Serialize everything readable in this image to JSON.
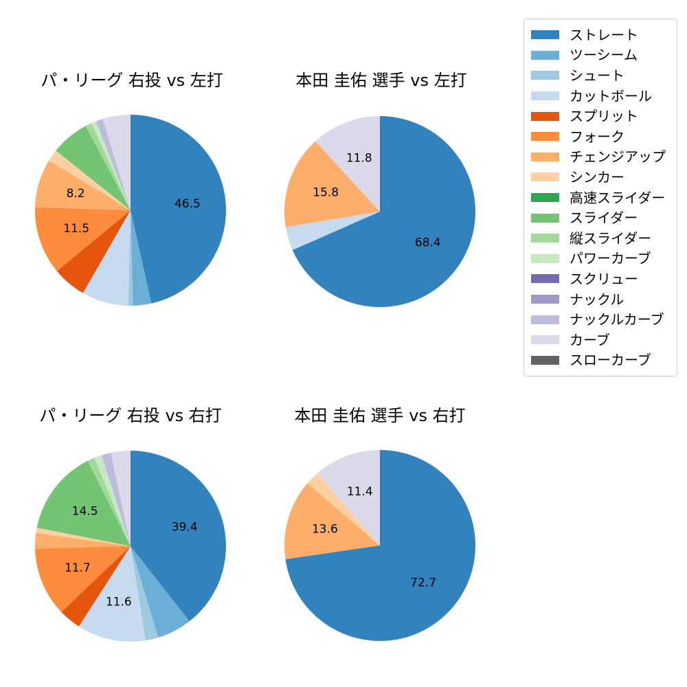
{
  "figure": {
    "background": "#ffffff",
    "text_color": "#000000"
  },
  "legend": {
    "background": "#ffffff",
    "border_color": "#cccccc",
    "items": [
      {
        "label": "ストレート",
        "color": "#3182bd"
      },
      {
        "label": "ツーシーム",
        "color": "#6baed6"
      },
      {
        "label": "シュート",
        "color": "#9ecae1"
      },
      {
        "label": "カットボール",
        "color": "#c6dbef"
      },
      {
        "label": "スプリット",
        "color": "#e6550d"
      },
      {
        "label": "フォーク",
        "color": "#fd8d3c"
      },
      {
        "label": "チェンジアップ",
        "color": "#fdae6b"
      },
      {
        "label": "シンカー",
        "color": "#fdd0a2"
      },
      {
        "label": "高速スライダー",
        "color": "#31a354"
      },
      {
        "label": "スライダー",
        "color": "#74c476"
      },
      {
        "label": "縦スライダー",
        "color": "#a1d99b"
      },
      {
        "label": "パワーカーブ",
        "color": "#c7e9c0"
      },
      {
        "label": "スクリュー",
        "color": "#756bb1"
      },
      {
        "label": "ナックル",
        "color": "#9e9ac8"
      },
      {
        "label": "ナックルカーブ",
        "color": "#bcbddc"
      },
      {
        "label": "カーブ",
        "color": "#dadaeb"
      },
      {
        "label": "スローカーブ",
        "color": "#636363"
      }
    ]
  },
  "chart_data": [
    {
      "type": "pie",
      "title": "パ・リーグ 右投 vs 左打",
      "start_angle": "top",
      "direction": "clockwise",
      "label_threshold_pct": 8,
      "shown_value_labels": [
        "46.5",
        "11.5",
        "8.2"
      ],
      "slices": [
        {
          "label": "ストレート",
          "value": 46.5,
          "color": "#3182bd"
        },
        {
          "label": "ツーシーム",
          "value": 3.1,
          "color": "#6baed6"
        },
        {
          "label": "シュート",
          "value": 0.8,
          "color": "#9ecae1"
        },
        {
          "label": "カットボール",
          "value": 7.9,
          "color": "#c6dbef"
        },
        {
          "label": "スプリット",
          "value": 5.7,
          "color": "#e6550d"
        },
        {
          "label": "フォーク",
          "value": 11.5,
          "color": "#fd8d3c"
        },
        {
          "label": "チェンジアップ",
          "value": 8.2,
          "color": "#fdae6b"
        },
        {
          "label": "シンカー",
          "value": 2.0,
          "color": "#fdd0a2"
        },
        {
          "label": "スライダー",
          "value": 6.5,
          "color": "#74c476"
        },
        {
          "label": "縦スライダー",
          "value": 1.1,
          "color": "#a1d99b"
        },
        {
          "label": "パワーカーブ",
          "value": 0.8,
          "color": "#c7e9c0"
        },
        {
          "label": "ナックルカーブ",
          "value": 1.2,
          "color": "#bcbddc"
        },
        {
          "label": "カーブ",
          "value": 4.7,
          "color": "#dadaeb"
        }
      ]
    },
    {
      "type": "pie",
      "title": "本田 圭佑 選手 vs 左打",
      "start_angle": "top",
      "direction": "clockwise",
      "label_threshold_pct": 8,
      "shown_value_labels": [
        "68.4",
        "15.8",
        "11.8"
      ],
      "slices": [
        {
          "label": "ストレート",
          "value": 68.4,
          "color": "#3182bd"
        },
        {
          "label": "カットボール",
          "value": 4.0,
          "color": "#c6dbef"
        },
        {
          "label": "チェンジアップ",
          "value": 15.8,
          "color": "#fdae6b"
        },
        {
          "label": "カーブ",
          "value": 11.8,
          "color": "#dadaeb"
        }
      ]
    },
    {
      "type": "pie",
      "title": "パ・リーグ 右投 vs 右打",
      "start_angle": "top",
      "direction": "clockwise",
      "label_threshold_pct": 8,
      "shown_value_labels": [
        "39.4",
        "11.6",
        "11.7",
        "14.5"
      ],
      "slices": [
        {
          "label": "ストレート",
          "value": 39.4,
          "color": "#3182bd"
        },
        {
          "label": "ツーシーム",
          "value": 5.9,
          "color": "#6baed6"
        },
        {
          "label": "シュート",
          "value": 2.2,
          "color": "#9ecae1"
        },
        {
          "label": "カットボール",
          "value": 11.6,
          "color": "#c6dbef"
        },
        {
          "label": "スプリット",
          "value": 3.8,
          "color": "#e6550d"
        },
        {
          "label": "フォーク",
          "value": 11.7,
          "color": "#fd8d3c"
        },
        {
          "label": "チェンジアップ",
          "value": 2.6,
          "color": "#fdae6b"
        },
        {
          "label": "シンカー",
          "value": 0.9,
          "color": "#fdd0a2"
        },
        {
          "label": "スライダー",
          "value": 14.5,
          "color": "#74c476"
        },
        {
          "label": "縦スライダー",
          "value": 1.2,
          "color": "#a1d99b"
        },
        {
          "label": "パワーカーブ",
          "value": 1.3,
          "color": "#c7e9c0"
        },
        {
          "label": "ナックルカーブ",
          "value": 1.6,
          "color": "#bcbddc"
        },
        {
          "label": "カーブ",
          "value": 3.3,
          "color": "#dadaeb"
        }
      ]
    },
    {
      "type": "pie",
      "title": "本田 圭佑 選手 vs 右打",
      "start_angle": "top",
      "direction": "clockwise",
      "label_threshold_pct": 8,
      "shown_value_labels": [
        "72.7",
        "13.6",
        "11.4"
      ],
      "slices": [
        {
          "label": "ストレート",
          "value": 72.7,
          "color": "#3182bd"
        },
        {
          "label": "チェンジアップ",
          "value": 13.6,
          "color": "#fdae6b"
        },
        {
          "label": "シンカー",
          "value": 2.3,
          "color": "#fdd0a2"
        },
        {
          "label": "カーブ",
          "value": 11.4,
          "color": "#dadaeb"
        }
      ]
    }
  ]
}
